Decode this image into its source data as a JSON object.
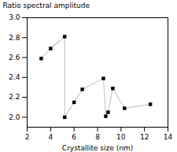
{
  "chart_data": {
    "type": "line",
    "x": [
      3.2,
      4.0,
      5.2,
      5.2,
      6.0,
      6.7,
      8.5,
      8.7,
      8.9,
      9.3,
      10.3,
      12.5
    ],
    "values": [
      2.59,
      2.69,
      2.81,
      2.0,
      2.15,
      2.28,
      2.39,
      2.01,
      2.05,
      2.29,
      2.09,
      2.13
    ],
    "xlim": [
      2,
      14
    ],
    "ylim": [
      1.9,
      3.0
    ],
    "xticks": [
      2,
      4,
      6,
      8,
      10,
      12,
      14
    ],
    "yticks": [
      {
        "value": 2.0,
        "label": "2.0"
      },
      2.2,
      2.4,
      2.6,
      2.8,
      {
        "value": 3.0,
        "label": "3.0"
      }
    ],
    "xlabel": "Crystallite size (nm)",
    "ylabel": "Ratio spectral amplitude",
    "color": "#c8c8c8",
    "marker": "square",
    "grid": false
  }
}
